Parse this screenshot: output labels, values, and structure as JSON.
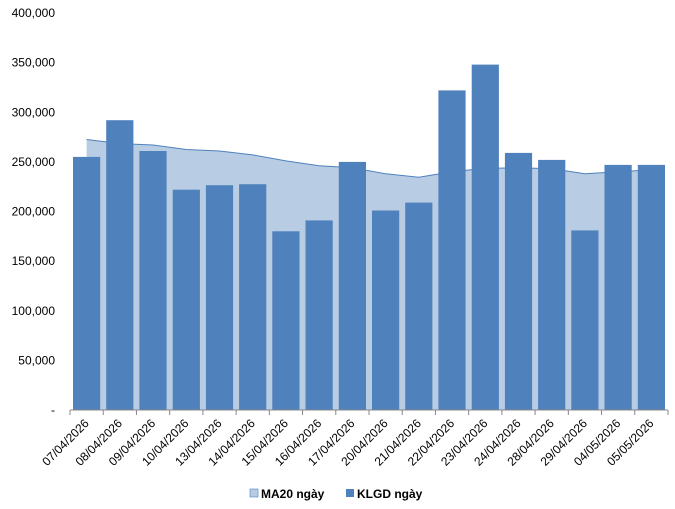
{
  "chart_data": {
    "type": "bar",
    "categories": [
      "07/04/2026",
      "08/04/2026",
      "09/04/2026",
      "10/04/2026",
      "13/04/2026",
      "14/04/2026",
      "15/04/2026",
      "16/04/2026",
      "17/04/2026",
      "20/04/2026",
      "21/04/2026",
      "22/04/2026",
      "23/04/2026",
      "24/04/2026",
      "28/04/2026",
      "29/04/2026",
      "04/05/2026",
      "05/05/2026"
    ],
    "series": [
      {
        "name": "MA20 ngày",
        "kind": "area",
        "color": "#b8cce4",
        "line_color": "#4f81bd",
        "values": [
          272500,
          268500,
          267000,
          262500,
          261000,
          257000,
          251000,
          246000,
          244000,
          238000,
          234500,
          240000,
          243500,
          244000,
          243000,
          238000,
          240000,
          242000
        ]
      },
      {
        "name": "KLGD ngày",
        "kind": "bar",
        "color": "#4f81bd",
        "values": [
          255000,
          292000,
          261000,
          222000,
          226500,
          227500,
          180000,
          191000,
          250000,
          201000,
          209000,
          322000,
          348000,
          259000,
          252000,
          181000,
          247000,
          247000
        ]
      }
    ],
    "ylim": [
      0,
      400000
    ],
    "y_ticks": [
      "-",
      "50,000",
      "100,000",
      "150,000",
      "200,000",
      "250,000",
      "300,000",
      "350,000",
      "400,000"
    ],
    "y_tick_values": [
      0,
      50000,
      100000,
      150000,
      200000,
      250000,
      300000,
      350000,
      400000
    ],
    "grid": false,
    "legend_position": "bottom",
    "xlabel": "",
    "ylabel": "",
    "title": ""
  }
}
